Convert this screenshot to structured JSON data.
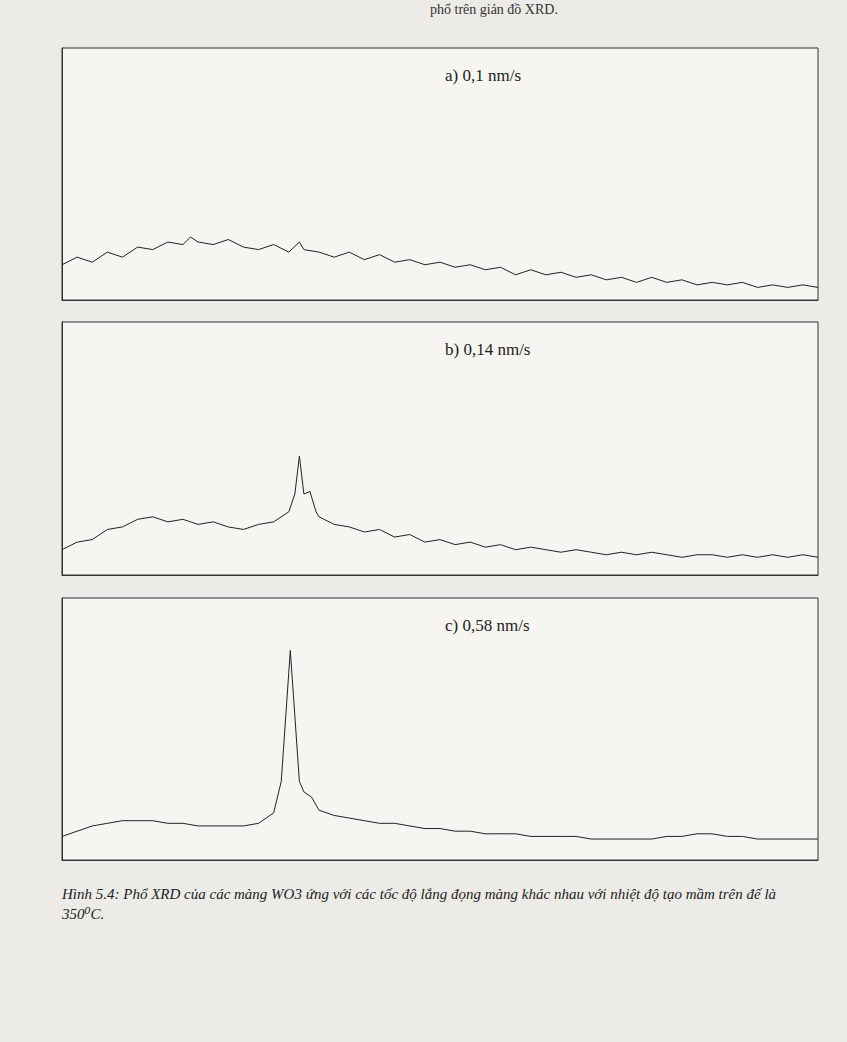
{
  "header": "phổ trên giản đồ XRD.",
  "chart_data": [
    {
      "type": "line",
      "title": "a) 0,1 nm/s",
      "color": "#222222",
      "grid": false,
      "tick_labels": false,
      "xlim": [
        20,
        70
      ],
      "ylim": [
        0,
        100
      ],
      "x": [
        20,
        21,
        22,
        23,
        24,
        25,
        26,
        27,
        28,
        28.5,
        29,
        30,
        31,
        32,
        33,
        34,
        35,
        35.7,
        36,
        37,
        38,
        39,
        40,
        41,
        42,
        43,
        44,
        45,
        46,
        47,
        48,
        49,
        50,
        51,
        52,
        53,
        54,
        55,
        56,
        57,
        58,
        59,
        60,
        61,
        62,
        63,
        64,
        65,
        66,
        67,
        68,
        69,
        70
      ],
      "values": [
        14,
        17,
        15,
        19,
        17,
        21,
        20,
        23,
        22,
        25,
        23,
        22,
        24,
        21,
        20,
        22,
        19,
        23,
        20,
        19,
        17,
        19,
        16,
        18,
        15,
        16,
        14,
        15,
        13,
        14,
        12,
        13,
        10,
        12,
        10,
        11,
        9,
        10,
        8,
        9,
        7,
        9,
        7,
        8,
        6,
        7,
        6,
        7,
        5,
        6,
        5,
        6,
        5
      ]
    },
    {
      "type": "line",
      "title": "b) 0,14 nm/s",
      "color": "#222222",
      "grid": false,
      "tick_labels": false,
      "xlim": [
        20,
        70
      ],
      "ylim": [
        0,
        100
      ],
      "x": [
        20,
        21,
        22,
        23,
        24,
        25,
        26,
        27,
        28,
        29,
        30,
        31,
        32,
        33,
        34,
        35,
        35.4,
        35.7,
        36,
        36.4,
        36.8,
        37,
        38,
        39,
        40,
        41,
        42,
        43,
        44,
        45,
        46,
        47,
        48,
        49,
        50,
        51,
        52,
        53,
        54,
        55,
        56,
        57,
        58,
        59,
        60,
        61,
        62,
        63,
        64,
        65,
        66,
        67,
        68,
        69,
        70
      ],
      "values": [
        10,
        13,
        14,
        18,
        19,
        22,
        23,
        21,
        22,
        20,
        21,
        19,
        18,
        20,
        21,
        25,
        32,
        47,
        32,
        33,
        25,
        23,
        20,
        19,
        17,
        18,
        15,
        16,
        13,
        14,
        12,
        13,
        11,
        12,
        10,
        11,
        10,
        9,
        10,
        9,
        8,
        9,
        8,
        9,
        8,
        7,
        8,
        8,
        7,
        8,
        7,
        8,
        7,
        8,
        7
      ]
    },
    {
      "type": "line",
      "title": "c) 0,58 nm/s",
      "color": "#222222",
      "grid": false,
      "tick_labels": false,
      "xlim": [
        20,
        70
      ],
      "ylim": [
        0,
        100
      ],
      "x": [
        20,
        21,
        22,
        23,
        24,
        25,
        26,
        27,
        28,
        29,
        30,
        31,
        32,
        33,
        34,
        34.5,
        34.8,
        35.1,
        35.4,
        35.7,
        36,
        36.5,
        37,
        38,
        39,
        40,
        41,
        42,
        43,
        44,
        45,
        46,
        47,
        48,
        49,
        50,
        51,
        52,
        53,
        54,
        55,
        56,
        57,
        58,
        59,
        60,
        61,
        62,
        63,
        64,
        65,
        66,
        67,
        68,
        69,
        70
      ],
      "values": [
        9,
        11,
        13,
        14,
        15,
        15,
        15,
        14,
        14,
        13,
        13,
        13,
        13,
        14,
        18,
        30,
        55,
        80,
        55,
        30,
        26,
        24,
        19,
        17,
        16,
        15,
        14,
        14,
        13,
        12,
        12,
        11,
        11,
        10,
        10,
        10,
        9,
        9,
        9,
        9,
        8,
        8,
        8,
        8,
        8,
        9,
        9,
        10,
        10,
        9,
        9,
        8,
        8,
        8,
        8,
        8
      ]
    }
  ],
  "caption": "Hình 5.4: Phổ XRD của các màng WO3 ứng với các tốc độ lắng đọng màng khác nhau với nhiệt độ tạo mầm trên đế là 350⁰C."
}
